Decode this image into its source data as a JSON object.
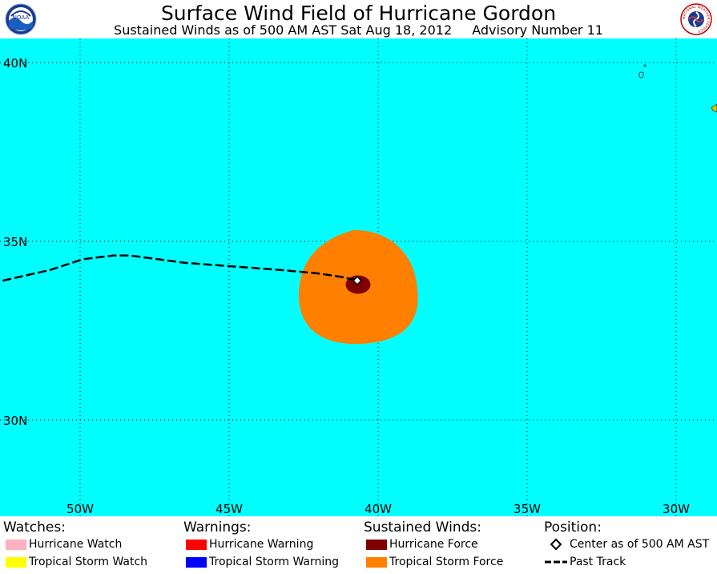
{
  "header": {
    "title": "Surface Wind Field of Hurricane Gordon",
    "subtitle_time": "Sustained Winds as of 500 AM AST Sat Aug 18, 2012",
    "subtitle_advisory": "Advisory Number 11",
    "noaa_logo_text": "NOAA",
    "nws_logo_text": "NATIONAL WEATHER SERVICE"
  },
  "colors": {
    "ocean": "#00ffff",
    "tropical_storm_force": "#ff8000",
    "hurricane_force": "#800000",
    "hurricane_watch": "#ffb0c0",
    "tropical_storm_watch": "#ffff00",
    "hurricane_warning": "#ff0000",
    "tropical_storm_warning": "#0000ff",
    "land": "#c8c800"
  },
  "map": {
    "lat_labels": [
      {
        "lat": 40,
        "label": "40N"
      },
      {
        "lat": 35,
        "label": "35N"
      },
      {
        "lat": 30,
        "label": "30N"
      }
    ],
    "lon_labels": [
      {
        "lon": -50,
        "label": "50W"
      },
      {
        "lon": -45,
        "label": "45W"
      },
      {
        "lon": -40,
        "label": "40W"
      },
      {
        "lon": -35,
        "label": "35W"
      },
      {
        "lon": -30,
        "label": "30W"
      }
    ],
    "center": {
      "lat": 33.9,
      "lon": -40.7
    },
    "past_track": [
      {
        "lat": 33.9,
        "lon": -52.6
      },
      {
        "lat": 34.2,
        "lon": -51.0
      },
      {
        "lat": 34.5,
        "lon": -49.9
      },
      {
        "lat": 34.6,
        "lon": -48.9
      },
      {
        "lat": 34.6,
        "lon": -48.3
      },
      {
        "lat": 34.5,
        "lon": -47.4
      },
      {
        "lat": 34.4,
        "lon": -46.5
      },
      {
        "lat": 34.3,
        "lon": -44.9
      },
      {
        "lat": 34.2,
        "lon": -43.3
      },
      {
        "lat": 34.1,
        "lon": -42.0
      },
      {
        "lat": 34.0,
        "lon": -41.2
      },
      {
        "lat": 33.9,
        "lon": -40.7
      }
    ]
  },
  "legend": {
    "watches": {
      "heading": "Watches:",
      "items": [
        {
          "label": "Hurricane Watch",
          "color": "#ffb0c0"
        },
        {
          "label": "Tropical Storm Watch",
          "color": "#ffff00"
        }
      ]
    },
    "warnings": {
      "heading": "Warnings:",
      "items": [
        {
          "label": "Hurricane Warning",
          "color": "#ff0000"
        },
        {
          "label": "Tropical Storm Warning",
          "color": "#0000ff"
        }
      ]
    },
    "winds": {
      "heading": "Sustained Winds:",
      "items": [
        {
          "label": "Hurricane Force",
          "color": "#800000"
        },
        {
          "label": "Tropical Storm Force",
          "color": "#ff8000"
        }
      ]
    },
    "position": {
      "heading": "Position:",
      "center_label": "Center as of 500 AM AST",
      "track_label": "Past Track"
    }
  }
}
